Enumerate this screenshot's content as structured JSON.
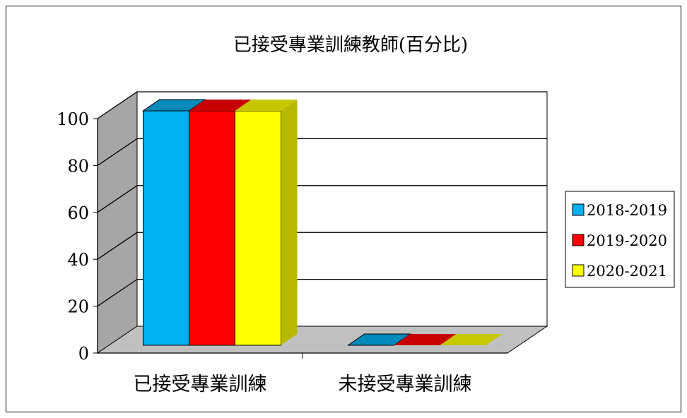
{
  "chart_data": {
    "type": "bar",
    "title": "已接受專業訓練教師(百分比)",
    "xlabel": "",
    "ylabel": "",
    "categories": [
      "已接受專業訓練",
      "未接受專業訓練"
    ],
    "series": [
      {
        "name": "2018-2019",
        "values": [
          100,
          0
        ],
        "color": "#00b0f0"
      },
      {
        "name": "2019-2020",
        "values": [
          100,
          0
        ],
        "color": "#ff0000"
      },
      {
        "name": "2020-2021",
        "values": [
          100,
          0
        ],
        "color": "#ffff00"
      }
    ],
    "ylim": [
      0,
      100
    ],
    "yticks": [
      "0",
      "20",
      "40",
      "60",
      "80",
      "100"
    ],
    "grid": true,
    "legend": "right",
    "style": "3d-clustered-column",
    "wall_color": "#a6a6a6",
    "floor_color": "#c0c0c0"
  }
}
